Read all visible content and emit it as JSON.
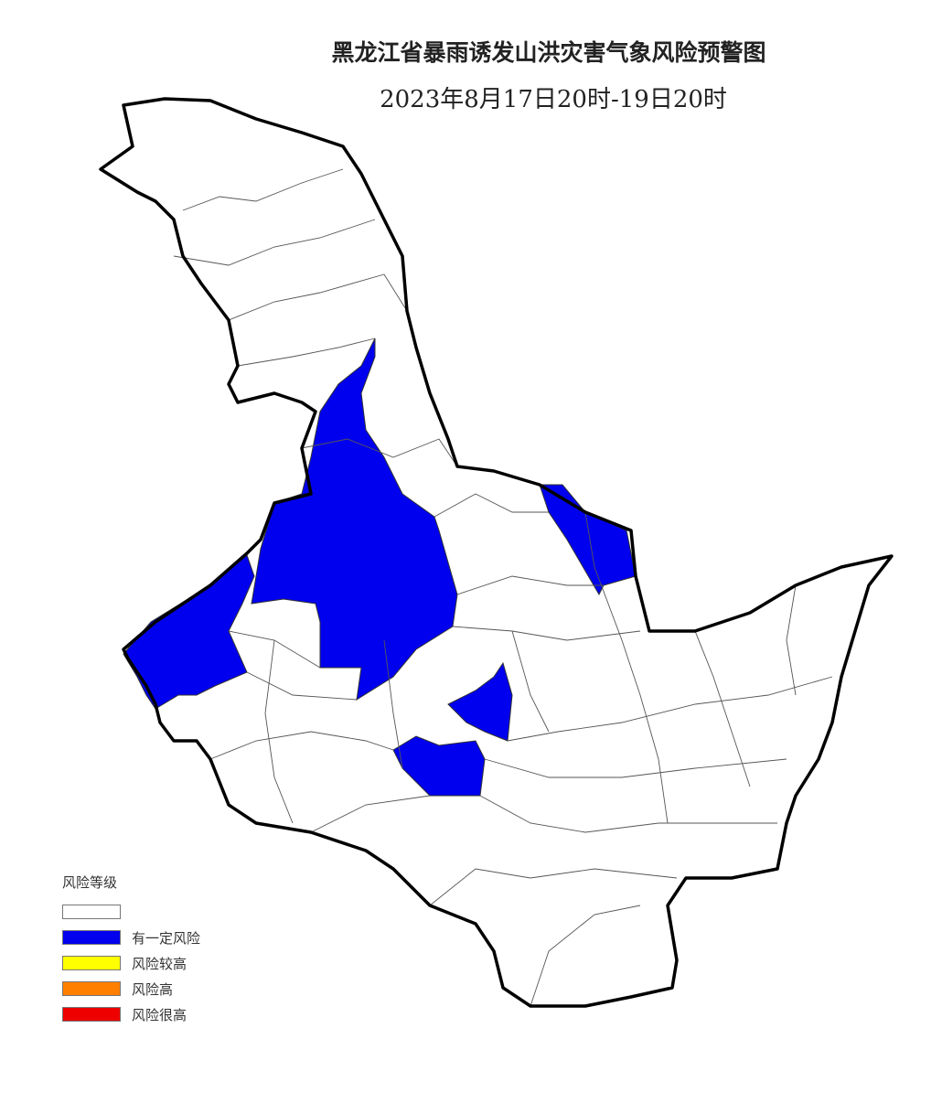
{
  "title": "黑龙江省暴雨诱发山洪灾害气象风险预警图",
  "subtitle": "2023年8月17日20时-19日20时",
  "legend": {
    "title": "风险等级",
    "items": [
      {
        "label": "",
        "color": "#ffffff"
      },
      {
        "label": "有一定风险",
        "color": "#0000ee"
      },
      {
        "label": "风险较高",
        "color": "#ffff00"
      },
      {
        "label": "风险高",
        "color": "#ff8000"
      },
      {
        "label": "风险很高",
        "color": "#ee0000"
      }
    ]
  },
  "map": {
    "region": "Heilongjiang",
    "risk_colors": {
      "none": "#ffffff",
      "some_risk": "#0000ee"
    },
    "highlighted_level": "有一定风险"
  }
}
